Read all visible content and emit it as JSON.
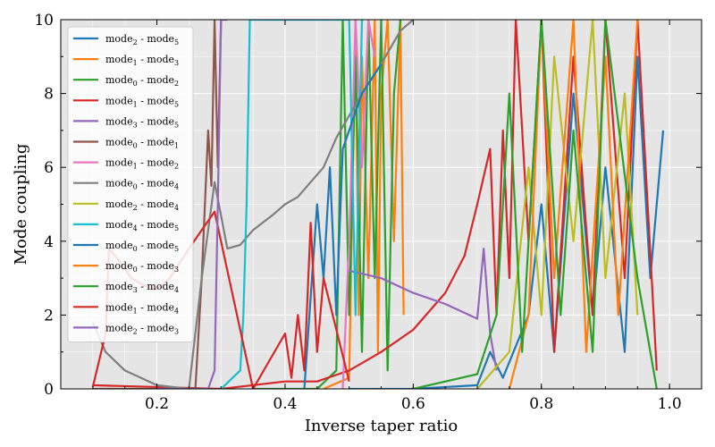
{
  "chart_data": {
    "type": "line",
    "title": "",
    "xlabel": "Inverse taper ratio",
    "ylabel": "Mode coupling",
    "xlim": [
      0.05,
      1.05
    ],
    "ylim": [
      0,
      10
    ],
    "xticks": [
      "0.2",
      "0.4",
      "0.6",
      "0.8",
      "1.0"
    ],
    "xtick_values": [
      0.2,
      0.4,
      0.6,
      0.8,
      1.0
    ],
    "yticks": [
      "0",
      "2",
      "4",
      "6",
      "8",
      "10"
    ],
    "ytick_values": [
      0,
      2,
      4,
      6,
      8,
      10
    ],
    "grid": true,
    "legend_position": "top-left",
    "series": [
      {
        "name": "mode2 - mode5",
        "color": "#1f77b4",
        "label_parts": [
          [
            "mode",
            "2"
          ],
          [
            "mode",
            "5"
          ]
        ],
        "points": [
          [
            0.5,
            0
          ],
          [
            0.6,
            0
          ],
          [
            0.7,
            0.1
          ],
          [
            0.72,
            1.0
          ],
          [
            0.74,
            0.3
          ],
          [
            0.78,
            2.0
          ],
          [
            0.8,
            5.0
          ],
          [
            0.82,
            1.0
          ],
          [
            0.85,
            8.0
          ],
          [
            0.88,
            2.0
          ],
          [
            0.9,
            6.0
          ],
          [
            0.93,
            1.0
          ],
          [
            0.95,
            9.0
          ],
          [
            0.97,
            3.0
          ],
          [
            0.99,
            7.0
          ]
        ]
      },
      {
        "name": "mode1 - mode3",
        "color": "#ff7f0e",
        "label_parts": [
          [
            "mode",
            "1"
          ],
          [
            "mode",
            "3"
          ]
        ],
        "points": [
          [
            0.46,
            0
          ],
          [
            0.5,
            0.3
          ],
          [
            0.51,
            10
          ],
          [
            0.515,
            2.0
          ],
          [
            0.52,
            9.0
          ],
          [
            0.53,
            3.0
          ],
          [
            0.54,
            10
          ],
          [
            0.545,
            1.0
          ],
          [
            0.55,
            8.0
          ],
          [
            0.56,
            10
          ],
          [
            0.57,
            4.0
          ],
          [
            0.58,
            10
          ],
          [
            0.585,
            2.0
          ]
        ]
      },
      {
        "name": "mode0 - mode2",
        "color": "#2ca02c",
        "label_parts": [
          [
            "mode",
            "0"
          ],
          [
            "mode",
            "2"
          ]
        ],
        "points": [
          [
            0.35,
            0
          ],
          [
            0.45,
            0
          ],
          [
            0.48,
            0.5
          ],
          [
            0.49,
            10
          ],
          [
            0.5,
            2.0
          ],
          [
            0.51,
            9.0
          ],
          [
            0.52,
            1.0
          ],
          [
            0.53,
            10
          ],
          [
            0.54,
            3.0
          ],
          [
            0.55,
            10
          ],
          [
            0.56,
            0.5
          ],
          [
            0.57,
            8.0
          ],
          [
            0.58,
            10
          ]
        ]
      },
      {
        "name": "mode1 - mode5",
        "color": "#d62728",
        "label_parts": [
          [
            "mode",
            "1"
          ],
          [
            "mode",
            "5"
          ]
        ],
        "points": [
          [
            0.1,
            0.1
          ],
          [
            0.3,
            0
          ],
          [
            0.4,
            0.2
          ],
          [
            0.45,
            0.2
          ],
          [
            0.5,
            0.5
          ],
          [
            0.55,
            1.0
          ],
          [
            0.6,
            1.6
          ],
          [
            0.65,
            2.6
          ],
          [
            0.68,
            3.6
          ],
          [
            0.7,
            5.0
          ],
          [
            0.72,
            6.5
          ],
          [
            0.73,
            2.0
          ],
          [
            0.74,
            7.0
          ],
          [
            0.75,
            3.0
          ],
          [
            0.76,
            10
          ],
          [
            0.78,
            4.0
          ],
          [
            0.8,
            10
          ],
          [
            0.82,
            1.0
          ],
          [
            0.85,
            9.0
          ],
          [
            0.88,
            2.0
          ],
          [
            0.9,
            10
          ],
          [
            0.93,
            3.0
          ],
          [
            0.95,
            10
          ],
          [
            0.98,
            0.5
          ]
        ]
      },
      {
        "name": "mode3 - mode5",
        "color": "#9467bd",
        "label_parts": [
          [
            "mode",
            "3"
          ],
          [
            "mode",
            "5"
          ]
        ],
        "points": [
          [
            0.5,
            3.2
          ],
          [
            0.55,
            3.0
          ],
          [
            0.6,
            2.6
          ],
          [
            0.65,
            2.3
          ],
          [
            0.7,
            1.9
          ],
          [
            0.71,
            3.8
          ],
          [
            0.72,
            1.5
          ],
          [
            0.73,
            0.5
          ]
        ]
      },
      {
        "name": "mode0 - mode1",
        "color": "#8c564b",
        "label_parts": [
          [
            "mode",
            "0"
          ],
          [
            "mode",
            "1"
          ]
        ],
        "points": [
          [
            0.1,
            0
          ],
          [
            0.26,
            0
          ],
          [
            0.27,
            3.0
          ],
          [
            0.275,
            5.0
          ],
          [
            0.28,
            7.0
          ],
          [
            0.285,
            5.5
          ],
          [
            0.29,
            10
          ],
          [
            0.295,
            6.0
          ],
          [
            0.3,
            10
          ]
        ]
      },
      {
        "name": "mode1 - mode2",
        "color": "#e377c2",
        "label_parts": [
          [
            "mode",
            "1"
          ],
          [
            "mode",
            "2"
          ]
        ],
        "points": [
          [
            0.49,
            0
          ],
          [
            0.5,
            4.0
          ],
          [
            0.51,
            10
          ],
          [
            0.52,
            6.0
          ],
          [
            0.53,
            10
          ],
          [
            0.54,
            9.0
          ]
        ]
      },
      {
        "name": "mode0 - mode4",
        "color": "#7f7f7f",
        "label_parts": [
          [
            "mode",
            "0"
          ],
          [
            "mode",
            "4"
          ]
        ],
        "points": [
          [
            0.1,
            1.8
          ],
          [
            0.12,
            1.0
          ],
          [
            0.15,
            0.5
          ],
          [
            0.2,
            0.1
          ],
          [
            0.25,
            0
          ],
          [
            0.27,
            3.0
          ],
          [
            0.29,
            5.6
          ],
          [
            0.31,
            3.8
          ],
          [
            0.33,
            3.9
          ],
          [
            0.35,
            4.3
          ],
          [
            0.38,
            4.7
          ],
          [
            0.4,
            5.0
          ],
          [
            0.42,
            5.2
          ],
          [
            0.44,
            5.6
          ],
          [
            0.46,
            6.0
          ],
          [
            0.48,
            6.8
          ],
          [
            0.5,
            7.4
          ],
          [
            0.52,
            8.0
          ],
          [
            0.55,
            8.8
          ],
          [
            0.58,
            9.7
          ],
          [
            0.6,
            10
          ]
        ]
      },
      {
        "name": "mode2 - mode4",
        "color": "#bcbd22",
        "label_parts": [
          [
            "mode",
            "2"
          ],
          [
            "mode",
            "4"
          ]
        ],
        "points": [
          [
            0.7,
            0
          ],
          [
            0.75,
            1.0
          ],
          [
            0.78,
            6.0
          ],
          [
            0.8,
            2.0
          ],
          [
            0.82,
            9.0
          ],
          [
            0.85,
            4.0
          ],
          [
            0.88,
            10
          ],
          [
            0.9,
            3.0
          ],
          [
            0.93,
            8.0
          ],
          [
            0.95,
            2.0
          ]
        ]
      },
      {
        "name": "mode4 - mode5",
        "color": "#17becf",
        "label_parts": [
          [
            "mode",
            "4"
          ],
          [
            "mode",
            "5"
          ]
        ],
        "points": [
          [
            0.3,
            0
          ],
          [
            0.33,
            0.5
          ],
          [
            0.335,
            2.0
          ],
          [
            0.34,
            5.0
          ],
          [
            0.345,
            10
          ],
          [
            0.36,
            10
          ],
          [
            0.5,
            10
          ],
          [
            0.51,
            2.0
          ],
          [
            0.52,
            10
          ]
        ]
      },
      {
        "name": "mode0 - mode5",
        "color": "#1f77b4",
        "label_parts": [
          [
            "mode",
            "0"
          ],
          [
            "mode",
            "5"
          ]
        ],
        "points": [
          [
            0.43,
            0
          ],
          [
            0.45,
            5.0
          ],
          [
            0.46,
            3.0
          ],
          [
            0.47,
            6.0
          ],
          [
            0.48,
            2.0
          ],
          [
            0.49,
            6.5
          ],
          [
            0.5,
            7.0
          ],
          [
            0.52,
            8.0
          ],
          [
            0.55,
            8.8
          ]
        ]
      },
      {
        "name": "mode0 - mode3",
        "color": "#ff7f0e",
        "label_parts": [
          [
            "mode",
            "0"
          ],
          [
            "mode",
            "3"
          ]
        ],
        "points": [
          [
            0.75,
            0
          ],
          [
            0.78,
            2.0
          ],
          [
            0.8,
            10
          ],
          [
            0.82,
            3.0
          ],
          [
            0.85,
            10
          ],
          [
            0.87,
            1.0
          ],
          [
            0.9,
            9.0
          ],
          [
            0.92,
            2.0
          ],
          [
            0.95,
            10
          ]
        ]
      },
      {
        "name": "mode3 - mode4",
        "color": "#2ca02c",
        "label_parts": [
          [
            "mode",
            "3"
          ],
          [
            "mode",
            "4"
          ]
        ],
        "points": [
          [
            0.6,
            0
          ],
          [
            0.7,
            0.4
          ],
          [
            0.73,
            2.0
          ],
          [
            0.75,
            8.0
          ],
          [
            0.77,
            1.0
          ],
          [
            0.8,
            10
          ],
          [
            0.83,
            2.0
          ],
          [
            0.85,
            7.0
          ],
          [
            0.88,
            1.0
          ],
          [
            0.9,
            10
          ],
          [
            0.95,
            3.0
          ],
          [
            0.98,
            0
          ]
        ]
      },
      {
        "name": "mode1 - mode4",
        "color": "#d62728",
        "label_parts": [
          [
            "mode",
            "1"
          ],
          [
            "mode",
            "4"
          ]
        ],
        "points": [
          [
            0.1,
            0.05
          ],
          [
            0.12,
            1.5
          ],
          [
            0.125,
            3.8
          ],
          [
            0.14,
            3.5
          ],
          [
            0.16,
            3.0
          ],
          [
            0.18,
            2.8
          ],
          [
            0.2,
            2.7
          ],
          [
            0.22,
            3.0
          ],
          [
            0.25,
            3.8
          ],
          [
            0.27,
            4.3
          ],
          [
            0.29,
            4.8
          ],
          [
            0.35,
            0
          ],
          [
            0.4,
            1.5
          ],
          [
            0.41,
            0.3
          ],
          [
            0.42,
            2.0
          ],
          [
            0.43,
            0.5
          ],
          [
            0.44,
            4.5
          ],
          [
            0.45,
            1.0
          ],
          [
            0.46,
            3.0
          ],
          [
            0.5,
            0.2
          ]
        ]
      },
      {
        "name": "mode2 - mode3",
        "color": "#9467bd",
        "label_parts": [
          [
            "mode",
            "2"
          ],
          [
            "mode",
            "3"
          ]
        ],
        "points": [
          [
            0.2,
            0
          ],
          [
            0.28,
            0
          ],
          [
            0.29,
            0.5
          ],
          [
            0.295,
            5.0
          ],
          [
            0.3,
            10
          ],
          [
            0.31,
            10
          ]
        ]
      }
    ]
  }
}
